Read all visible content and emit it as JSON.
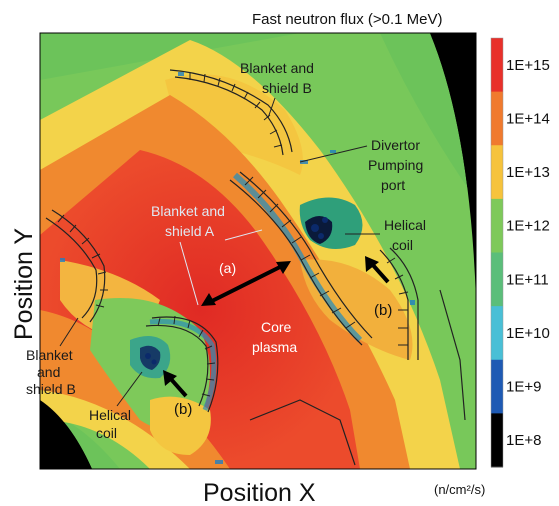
{
  "chart_data": {
    "type": "heatmap",
    "title": "Fast neutron flux (>0.1 MeV)",
    "xlabel": "Position X",
    "ylabel": "Position Y",
    "colorbar": {
      "unit_label": "(n/cm²/s)",
      "scale": "log",
      "ticks": [
        "1E+15",
        "1E+14",
        "1E+13",
        "1E+12",
        "1E+11",
        "1E+10",
        "1E+9",
        "1E+8"
      ],
      "values": [
        1000000000000000.0,
        100000000000000.0,
        10000000000000.0,
        1000000000000.0,
        100000000000.0,
        10000000000.0,
        1000000000.0,
        100000000.0
      ],
      "colors": [
        "#e8302a",
        "#f07a2e",
        "#f6c33c",
        "#7ec95a",
        "#5bbe7a",
        "#49bfd6",
        "#1e5ab4",
        "#000000"
      ]
    },
    "annotations": [
      {
        "id": "blanket-b-top",
        "text": [
          "Blanket and",
          "shield B"
        ]
      },
      {
        "id": "divertor",
        "text": [
          "Divertor",
          "Pumping",
          "port"
        ]
      },
      {
        "id": "blanket-a",
        "text": [
          "Blanket and",
          "shield A"
        ]
      },
      {
        "id": "helical-right",
        "text": [
          "Helical",
          "coil"
        ]
      },
      {
        "id": "label-a",
        "text": [
          "(a)"
        ]
      },
      {
        "id": "label-b-right",
        "text": [
          "(b)"
        ]
      },
      {
        "id": "core",
        "text": [
          "Core",
          "plasma"
        ]
      },
      {
        "id": "blanket-b-left",
        "text": [
          "Blanket",
          "and",
          "shield B"
        ]
      },
      {
        "id": "helical-left",
        "text": [
          "Helical",
          "coil"
        ]
      },
      {
        "id": "label-b-left",
        "text": [
          "(b)"
        ]
      }
    ]
  }
}
